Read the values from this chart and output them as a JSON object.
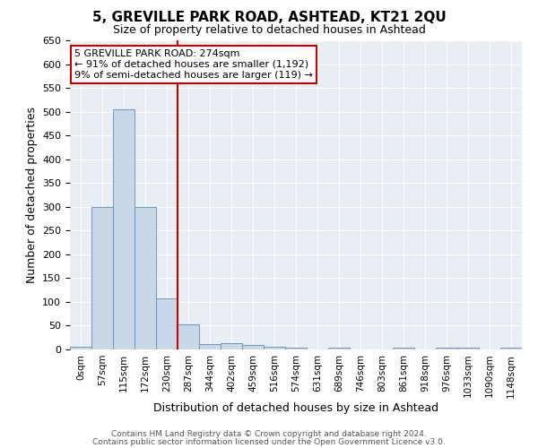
{
  "title": "5, GREVILLE PARK ROAD, ASHTEAD, KT21 2QU",
  "subtitle": "Size of property relative to detached houses in Ashtead",
  "xlabel": "Distribution of detached houses by size in Ashtead",
  "ylabel": "Number of detached properties",
  "bar_labels": [
    "0sqm",
    "57sqm",
    "115sqm",
    "172sqm",
    "230sqm",
    "287sqm",
    "344sqm",
    "402sqm",
    "459sqm",
    "516sqm",
    "574sqm",
    "631sqm",
    "689sqm",
    "746sqm",
    "803sqm",
    "861sqm",
    "918sqm",
    "976sqm",
    "1033sqm",
    "1090sqm",
    "1148sqm"
  ],
  "bar_values": [
    5,
    300,
    505,
    300,
    107,
    52,
    12,
    13,
    9,
    6,
    4,
    0,
    4,
    0,
    0,
    4,
    0,
    4,
    4,
    0,
    4
  ],
  "bar_color": "#c8d8e8",
  "bar_edgecolor": "#5b8db8",
  "vline_x": 4.5,
  "vline_color": "#cc0000",
  "ylim": [
    0,
    650
  ],
  "yticks": [
    0,
    50,
    100,
    150,
    200,
    250,
    300,
    350,
    400,
    450,
    500,
    550,
    600,
    650
  ],
  "annotation_text": "5 GREVILLE PARK ROAD: 274sqm\n← 91% of detached houses are smaller (1,192)\n9% of semi-detached houses are larger (119) →",
  "annotation_box_edgecolor": "#cc0000",
  "bg_color": "#e8eef4",
  "footer_line1": "Contains HM Land Registry data © Crown copyright and database right 2024.",
  "footer_line2": "Contains public sector information licensed under the Open Government Licence v3.0."
}
